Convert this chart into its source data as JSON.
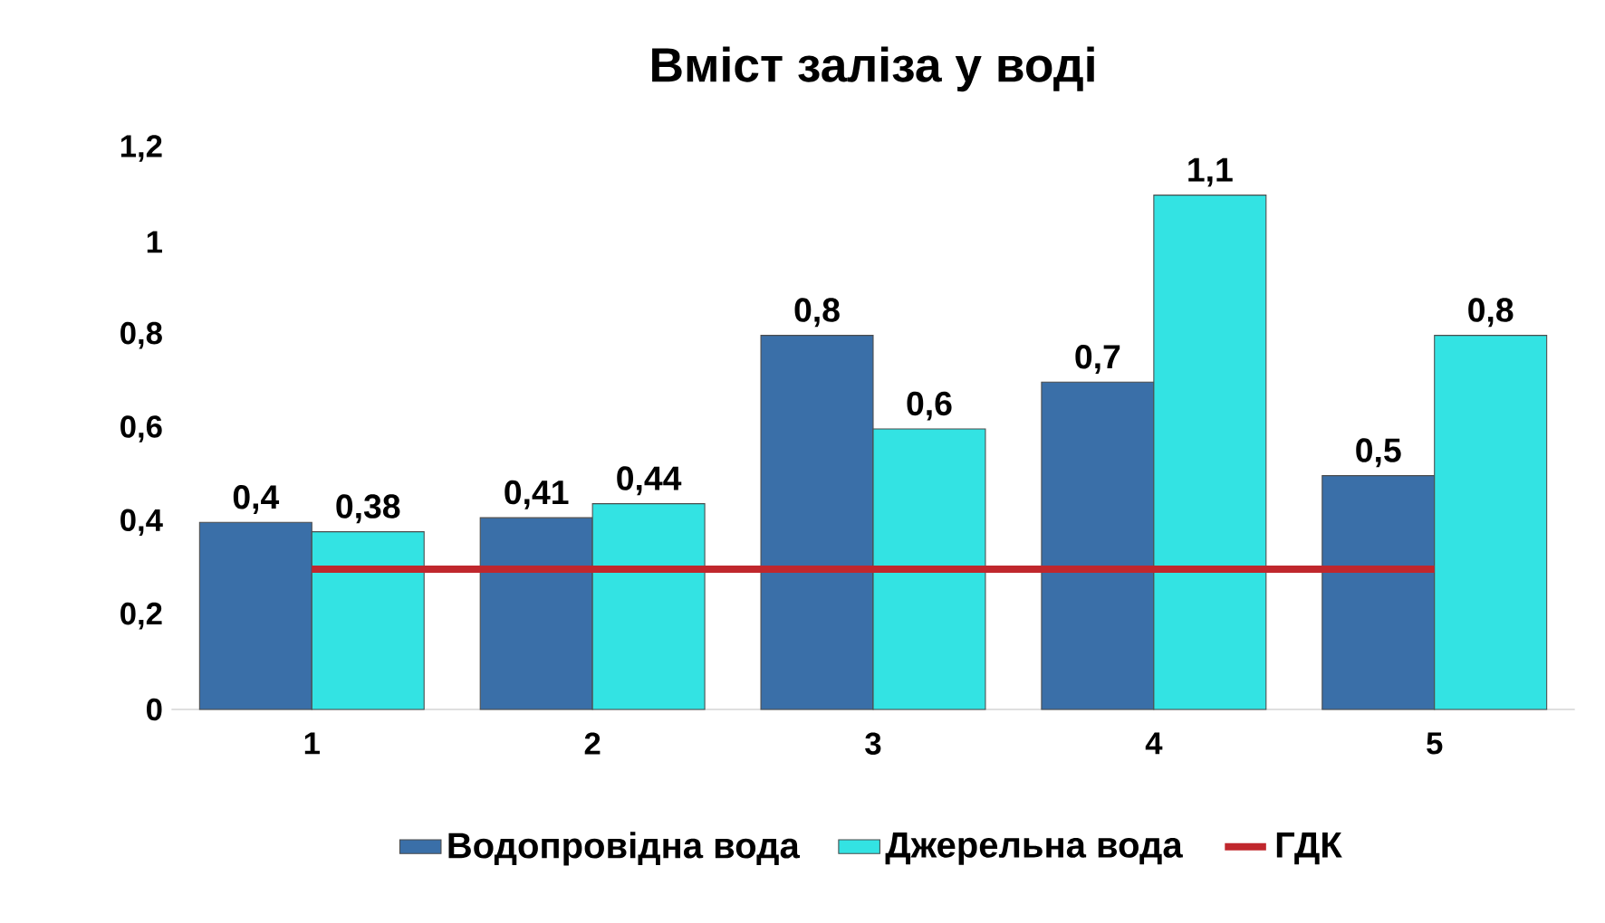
{
  "chart_data": {
    "type": "bar",
    "title": "Вміст заліза  у воді",
    "categories": [
      "1",
      "2",
      "3",
      "4",
      "5"
    ],
    "series": [
      {
        "name": "Водопровідна вода",
        "color": "#3a6fa8",
        "values": [
          0.4,
          0.41,
          0.8,
          0.7,
          0.5
        ],
        "value_labels": [
          "0,4",
          "0,41",
          "0,8",
          "0,7",
          "0,5"
        ]
      },
      {
        "name": "Джерельна вода",
        "color": "#33e3e3",
        "values": [
          0.38,
          0.44,
          0.6,
          1.1,
          0.8
        ],
        "value_labels": [
          "0,38",
          "0,44",
          "0,6",
          "1,1",
          "0,8"
        ]
      },
      {
        "name": "ГДК",
        "type": "line",
        "color": "#c0272d",
        "values": [
          0.3,
          0.3,
          0.3,
          0.3,
          0.3
        ]
      }
    ],
    "ylim": [
      0,
      1.2
    ],
    "yticks": [
      0,
      {
        "value": 0.2,
        "label": "0,2"
      },
      {
        "value": 0.4,
        "label": "0,4"
      },
      {
        "value": 0.6,
        "label": "0,6"
      },
      {
        "value": 0.8,
        "label": "0,8"
      },
      1,
      {
        "value": 1.2,
        "label": "1,2"
      }
    ],
    "legend": "bottom"
  }
}
